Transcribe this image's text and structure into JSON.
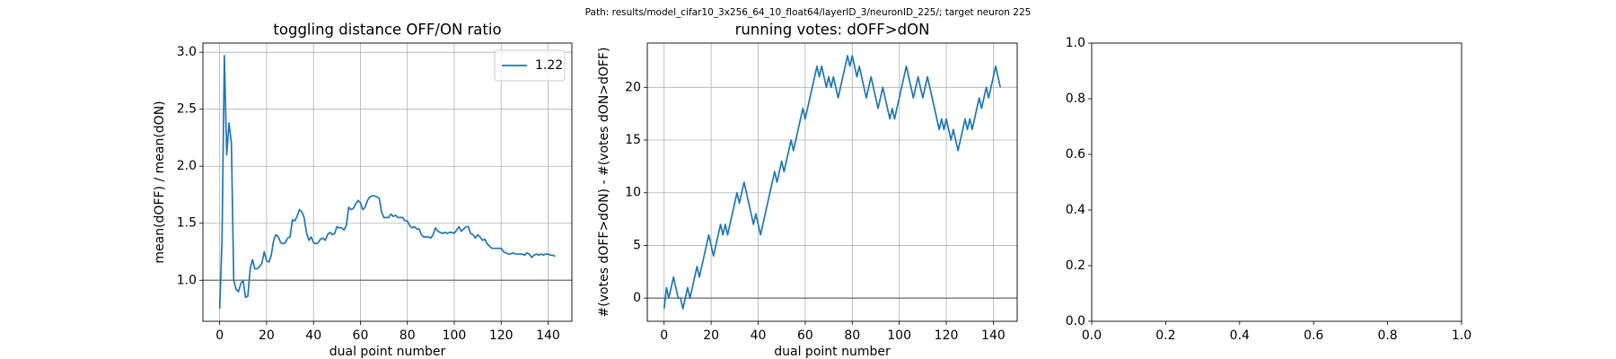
{
  "title": "Path: results/model_cifar10_3x256_64_10_float64/layerID_3/neuronID_225/; target neuron 225",
  "chart_data": [
    {
      "type": "line",
      "title": "toggling distance OFF/ON ratio",
      "xlabel": "dual point number",
      "ylabel": "mean(dOFF) / mean(dON)",
      "x": [
        0,
        1,
        2,
        3,
        4,
        5,
        6,
        7,
        8,
        9,
        10,
        11,
        12,
        13,
        14,
        15,
        16,
        17,
        18,
        19,
        20,
        21,
        22,
        23,
        24,
        25,
        26,
        27,
        28,
        29,
        30,
        31,
        32,
        33,
        34,
        35,
        36,
        37,
        38,
        39,
        40,
        41,
        42,
        43,
        44,
        45,
        46,
        47,
        48,
        49,
        50,
        51,
        52,
        53,
        54,
        55,
        56,
        57,
        58,
        59,
        60,
        61,
        62,
        63,
        64,
        65,
        66,
        67,
        68,
        69,
        70,
        71,
        72,
        73,
        74,
        75,
        76,
        77,
        78,
        79,
        80,
        81,
        82,
        83,
        84,
        85,
        86,
        87,
        88,
        89,
        90,
        91,
        92,
        93,
        94,
        95,
        96,
        97,
        98,
        99,
        100,
        101,
        102,
        103,
        104,
        105,
        106,
        107,
        108,
        109,
        110,
        111,
        112,
        113,
        114,
        115,
        116,
        117,
        118,
        119,
        120,
        121,
        122,
        123,
        124,
        125,
        126,
        127,
        128,
        129,
        130,
        131,
        132,
        133,
        134,
        135,
        136,
        137,
        138,
        139,
        140,
        141,
        142,
        143
      ],
      "series": [
        {
          "name": "1.22",
          "color": "#1f77b4",
          "values": [
            0.75,
            1.35,
            2.97,
            2.1,
            2.38,
            2.2,
            1.0,
            0.92,
            0.9,
            0.97,
            1.0,
            0.85,
            0.86,
            1.1,
            1.18,
            1.1,
            1.1,
            1.12,
            1.15,
            1.25,
            1.17,
            1.16,
            1.22,
            1.35,
            1.4,
            1.38,
            1.33,
            1.32,
            1.33,
            1.37,
            1.38,
            1.53,
            1.52,
            1.56,
            1.62,
            1.6,
            1.55,
            1.42,
            1.35,
            1.38,
            1.33,
            1.32,
            1.33,
            1.36,
            1.37,
            1.35,
            1.4,
            1.42,
            1.4,
            1.41,
            1.47,
            1.46,
            1.46,
            1.44,
            1.48,
            1.64,
            1.62,
            1.63,
            1.67,
            1.7,
            1.68,
            1.62,
            1.64,
            1.7,
            1.73,
            1.74,
            1.74,
            1.73,
            1.72,
            1.6,
            1.55,
            1.55,
            1.55,
            1.58,
            1.56,
            1.57,
            1.55,
            1.55,
            1.55,
            1.52,
            1.52,
            1.48,
            1.46,
            1.47,
            1.45,
            1.45,
            1.4,
            1.38,
            1.38,
            1.38,
            1.37,
            1.4,
            1.46,
            1.43,
            1.42,
            1.41,
            1.42,
            1.41,
            1.42,
            1.42,
            1.41,
            1.44,
            1.47,
            1.43,
            1.45,
            1.47,
            1.47,
            1.41,
            1.4,
            1.37,
            1.4,
            1.38,
            1.35,
            1.36,
            1.32,
            1.3,
            1.28,
            1.28,
            1.28,
            1.28,
            1.28,
            1.25,
            1.24,
            1.23,
            1.23,
            1.24,
            1.23,
            1.23,
            1.23,
            1.23,
            1.22,
            1.24,
            1.23,
            1.2,
            1.22,
            1.23,
            1.22,
            1.23,
            1.22,
            1.23,
            1.23,
            1.22,
            1.22,
            1.21
          ]
        }
      ],
      "hline": 1.0,
      "hline_color": "#808080",
      "xlim": [
        -7.15,
        150.15
      ],
      "xticks": [
        0,
        20,
        40,
        60,
        80,
        100,
        120,
        140
      ],
      "ylim": [
        0.64,
        3.08
      ],
      "yticks": [
        {
          "value": 1,
          "label": "1.0"
        },
        {
          "value": 1.5,
          "label": "1.5"
        },
        {
          "value": 2,
          "label": "2.0"
        },
        {
          "value": 2.5,
          "label": "2.5"
        },
        {
          "value": 3,
          "label": "3.0"
        }
      ],
      "grid": true,
      "legend": "upper right"
    },
    {
      "type": "line",
      "title": "running votes: dOFF>dON",
      "xlabel": "dual point number",
      "ylabel": "#(votes dOFF>dON) - #(votes dON>dOFF)",
      "x": [
        0,
        1,
        2,
        3,
        4,
        5,
        6,
        7,
        8,
        9,
        10,
        11,
        12,
        13,
        14,
        15,
        16,
        17,
        18,
        19,
        20,
        21,
        22,
        23,
        24,
        25,
        26,
        27,
        28,
        29,
        30,
        31,
        32,
        33,
        34,
        35,
        36,
        37,
        38,
        39,
        40,
        41,
        42,
        43,
        44,
        45,
        46,
        47,
        48,
        49,
        50,
        51,
        52,
        53,
        54,
        55,
        56,
        57,
        58,
        59,
        60,
        61,
        62,
        63,
        64,
        65,
        66,
        67,
        68,
        69,
        70,
        71,
        72,
        73,
        74,
        75,
        76,
        77,
        78,
        79,
        80,
        81,
        82,
        83,
        84,
        85,
        86,
        87,
        88,
        89,
        90,
        91,
        92,
        93,
        94,
        95,
        96,
        97,
        98,
        99,
        100,
        101,
        102,
        103,
        104,
        105,
        106,
        107,
        108,
        109,
        110,
        111,
        112,
        113,
        114,
        115,
        116,
        117,
        118,
        119,
        120,
        121,
        122,
        123,
        124,
        125,
        126,
        127,
        128,
        129,
        130,
        131,
        132,
        133,
        134,
        135,
        136,
        137,
        138,
        139,
        140,
        141,
        142,
        143
      ],
      "series": [
        {
          "color": "#1f77b4",
          "values": [
            -1,
            1,
            0,
            1,
            2,
            1,
            0,
            0,
            -1,
            0,
            1,
            0,
            1,
            2,
            3,
            2,
            3,
            4,
            5,
            6,
            5,
            4,
            5,
            6,
            7,
            6,
            7,
            6,
            7,
            8,
            9,
            10,
            9,
            10,
            11,
            10,
            9,
            8,
            7,
            8,
            7,
            6,
            7,
            8,
            9,
            10,
            11,
            12,
            11,
            12,
            13,
            12,
            13,
            14,
            15,
            14,
            15,
            16,
            17,
            18,
            17,
            18,
            19,
            20,
            21,
            22,
            21,
            22,
            21,
            20,
            21,
            20,
            21,
            20,
            19,
            20,
            21,
            22,
            23,
            22,
            23,
            22,
            21,
            22,
            21,
            20,
            19,
            20,
            21,
            20,
            19,
            18,
            19,
            20,
            19,
            18,
            17,
            18,
            17,
            18,
            19,
            20,
            21,
            22,
            21,
            20,
            19,
            20,
            21,
            20,
            19,
            20,
            21,
            20,
            19,
            18,
            17,
            16,
            17,
            16,
            17,
            16,
            15,
            16,
            15,
            14,
            15,
            16,
            17,
            16,
            17,
            16,
            17,
            18,
            19,
            18,
            19,
            20,
            19,
            20,
            21,
            22,
            21,
            20
          ]
        }
      ],
      "hline": 0,
      "hline_color": "#808080",
      "xlim": [
        -7.15,
        150.15
      ],
      "xticks": [
        0,
        20,
        40,
        60,
        80,
        100,
        120,
        140
      ],
      "ylim": [
        -2.2,
        24.2
      ],
      "yticks": [
        0,
        5,
        10,
        15,
        20
      ],
      "grid": true
    },
    {
      "type": "empty",
      "xlim": [
        0,
        1
      ],
      "xticks": [
        {
          "value": 0,
          "label": "0.0"
        },
        {
          "value": 0.2,
          "label": "0.2"
        },
        {
          "value": 0.4,
          "label": "0.4"
        },
        {
          "value": 0.6,
          "label": "0.6"
        },
        {
          "value": 0.8,
          "label": "0.8"
        },
        {
          "value": 1,
          "label": "1.0"
        }
      ],
      "ylim": [
        0,
        1
      ],
      "yticks": [
        {
          "value": 0,
          "label": "0.0"
        },
        {
          "value": 0.2,
          "label": "0.2"
        },
        {
          "value": 0.4,
          "label": "0.4"
        },
        {
          "value": 0.6,
          "label": "0.6"
        },
        {
          "value": 0.8,
          "label": "0.8"
        },
        {
          "value": 1,
          "label": "1.0"
        }
      ],
      "grid": false
    }
  ]
}
